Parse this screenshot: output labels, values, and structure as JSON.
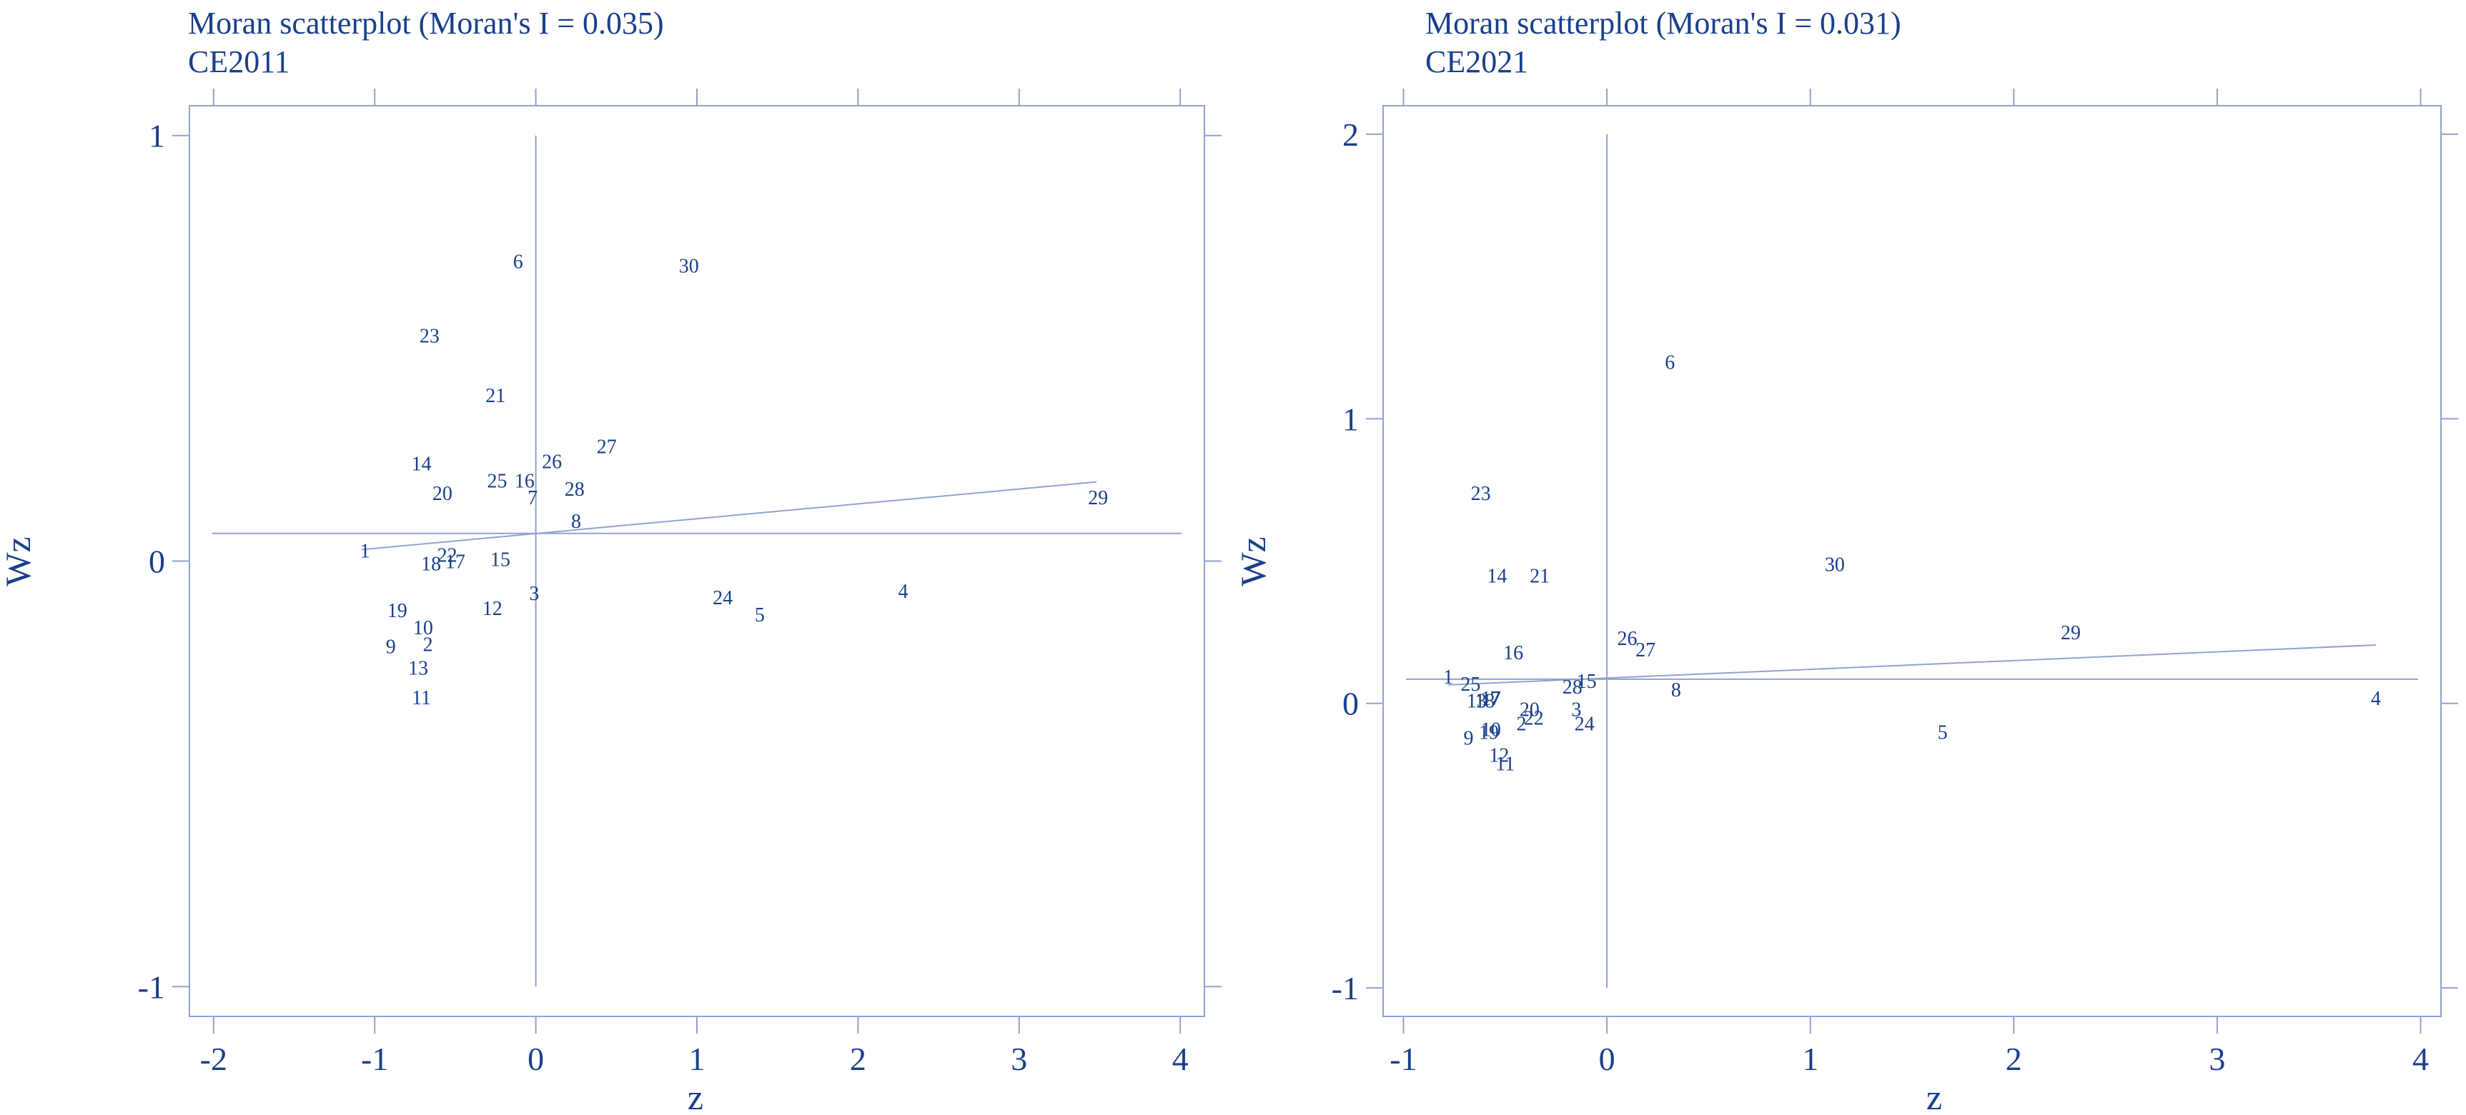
{
  "colors": {
    "text": "#1a3f8a",
    "lines": "#8ea3cf",
    "background": "#ffffff"
  },
  "chart_data": [
    {
      "type": "scatter",
      "title": "Moran scatterplot (Moran's I = 0.035)",
      "subtitle": "CE2011",
      "xlabel": "z",
      "ylabel": "Wz",
      "xlim": [
        -2.15,
        4.15
      ],
      "ylim": [
        -1.07,
        1.07
      ],
      "xticks": [
        -2,
        -1,
        0,
        1,
        2,
        3,
        4
      ],
      "yticks": [
        -1,
        0,
        1
      ],
      "xtick_labels": [
        "-2",
        "-1",
        "0",
        "1",
        "2",
        "3",
        "4"
      ],
      "ytick_labels": [
        "-1",
        "0",
        "1"
      ],
      "grid": false,
      "mean_lines": {
        "x": 0,
        "y": 0.065
      },
      "fit_line": {
        "x": [
          -1.08,
          3.48
        ],
        "y": [
          0.027,
          0.186
        ]
      },
      "points": [
        {
          "label": "1",
          "x": -1.06,
          "y": 0.025
        },
        {
          "label": "2",
          "x": -0.67,
          "y": -0.195
        },
        {
          "label": "3",
          "x": -0.01,
          "y": -0.075
        },
        {
          "label": "4",
          "x": 2.28,
          "y": -0.07
        },
        {
          "label": "5",
          "x": 1.39,
          "y": -0.125
        },
        {
          "label": "6",
          "x": -0.11,
          "y": 0.705
        },
        {
          "label": "7",
          "x": -0.02,
          "y": 0.15
        },
        {
          "label": "8",
          "x": 0.25,
          "y": 0.095
        },
        {
          "label": "9",
          "x": -0.9,
          "y": -0.2
        },
        {
          "label": "10",
          "x": -0.7,
          "y": -0.155
        },
        {
          "label": "11",
          "x": -0.71,
          "y": -0.32
        },
        {
          "label": "12",
          "x": -0.27,
          "y": -0.11
        },
        {
          "label": "13",
          "x": -0.73,
          "y": -0.25
        },
        {
          "label": "14",
          "x": -0.71,
          "y": 0.23
        },
        {
          "label": "15",
          "x": -0.22,
          "y": 0.005
        },
        {
          "label": "16",
          "x": -0.07,
          "y": 0.19
        },
        {
          "label": "17",
          "x": -0.5,
          "y": 0.0
        },
        {
          "label": "18",
          "x": -0.65,
          "y": -0.005
        },
        {
          "label": "19",
          "x": -0.86,
          "y": -0.115
        },
        {
          "label": "20",
          "x": -0.58,
          "y": 0.16
        },
        {
          "label": "21",
          "x": -0.25,
          "y": 0.39
        },
        {
          "label": "22",
          "x": -0.55,
          "y": 0.015
        },
        {
          "label": "23",
          "x": -0.66,
          "y": 0.53
        },
        {
          "label": "24",
          "x": 1.16,
          "y": -0.085
        },
        {
          "label": "25",
          "x": -0.24,
          "y": 0.19
        },
        {
          "label": "26",
          "x": 0.1,
          "y": 0.235
        },
        {
          "label": "27",
          "x": 0.44,
          "y": 0.27
        },
        {
          "label": "28",
          "x": 0.24,
          "y": 0.17
        },
        {
          "label": "29",
          "x": 3.49,
          "y": 0.15
        },
        {
          "label": "30",
          "x": 0.95,
          "y": 0.695
        }
      ]
    },
    {
      "type": "scatter",
      "title": "Moran scatterplot (Moran's I = 0.031)",
      "subtitle": "CE2021",
      "xlabel": "z",
      "ylabel": "Wz",
      "xlim": [
        -1.1,
        4.1
      ],
      "ylim": [
        -1.1,
        2.1
      ],
      "xticks": [
        -1,
        0,
        1,
        2,
        3,
        4
      ],
      "yticks": [
        -1,
        0,
        1,
        2
      ],
      "xtick_labels": [
        "-1",
        "0",
        "1",
        "2",
        "3",
        "4"
      ],
      "ytick_labels": [
        "-1",
        "0",
        "1",
        "2"
      ],
      "grid": false,
      "mean_lines": {
        "x": 0,
        "y": 0.085
      },
      "fit_line": {
        "x": [
          -0.78,
          3.78
        ],
        "y": [
          0.065,
          0.205
        ]
      },
      "points": [
        {
          "label": "1",
          "x": -0.78,
          "y": 0.095
        },
        {
          "label": "2",
          "x": -0.42,
          "y": -0.07
        },
        {
          "label": "3",
          "x": -0.15,
          "y": -0.02
        },
        {
          "label": "4",
          "x": 3.78,
          "y": 0.02
        },
        {
          "label": "5",
          "x": 1.65,
          "y": -0.1
        },
        {
          "label": "6",
          "x": 0.31,
          "y": 1.2
        },
        {
          "label": "7",
          "x": -0.55,
          "y": 0.02
        },
        {
          "label": "8",
          "x": 0.34,
          "y": 0.05
        },
        {
          "label": "9",
          "x": -0.68,
          "y": -0.12
        },
        {
          "label": "10",
          "x": -0.57,
          "y": -0.09
        },
        {
          "label": "11",
          "x": -0.5,
          "y": -0.21
        },
        {
          "label": "12",
          "x": -0.53,
          "y": -0.18
        },
        {
          "label": "13",
          "x": -0.64,
          "y": 0.01
        },
        {
          "label": "14",
          "x": -0.54,
          "y": 0.45
        },
        {
          "label": "15",
          "x": -0.1,
          "y": 0.08
        },
        {
          "label": "16",
          "x": -0.46,
          "y": 0.18
        },
        {
          "label": "17",
          "x": -0.57,
          "y": 0.02
        },
        {
          "label": "18",
          "x": -0.6,
          "y": 0.01
        },
        {
          "label": "19",
          "x": -0.58,
          "y": -0.1
        },
        {
          "label": "20",
          "x": -0.38,
          "y": -0.02
        },
        {
          "label": "21",
          "x": -0.33,
          "y": 0.45
        },
        {
          "label": "22",
          "x": -0.36,
          "y": -0.05
        },
        {
          "label": "23",
          "x": -0.62,
          "y": 0.74
        },
        {
          "label": "24",
          "x": -0.11,
          "y": -0.07
        },
        {
          "label": "25",
          "x": -0.67,
          "y": 0.07
        },
        {
          "label": "26",
          "x": 0.1,
          "y": 0.23
        },
        {
          "label": "27",
          "x": 0.19,
          "y": 0.19
        },
        {
          "label": "28",
          "x": -0.17,
          "y": 0.06
        },
        {
          "label": "29",
          "x": 2.28,
          "y": 0.25
        },
        {
          "label": "30",
          "x": 1.12,
          "y": 0.49
        }
      ]
    }
  ]
}
